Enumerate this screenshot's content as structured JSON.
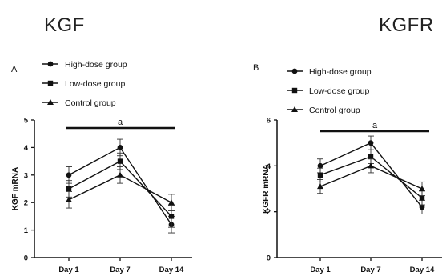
{
  "page_titles": [
    "KGF",
    "KGFR"
  ],
  "chart_data": [
    {
      "type": "line",
      "panel_label": "A",
      "title": "KGF",
      "xlabel": "",
      "ylabel": "KGF mRNA",
      "categories": [
        "Day 1",
        "Day 7",
        "Day 14"
      ],
      "ylim": [
        0,
        5
      ],
      "yticks": [
        "0",
        "1",
        "2",
        "3",
        "4",
        "5"
      ],
      "significance_label": "a",
      "legend_position": "top-left",
      "series": [
        {
          "name": "High-dose group",
          "marker": "circle",
          "values": [
            3.0,
            4.0,
            1.2
          ],
          "errors": [
            0.3,
            0.3,
            0.3
          ]
        },
        {
          "name": "Low-dose group",
          "marker": "square",
          "values": [
            2.5,
            3.5,
            1.5
          ],
          "errors": [
            0.3,
            0.3,
            0.4
          ]
        },
        {
          "name": "Control group",
          "marker": "triangle",
          "values": [
            2.1,
            3.0,
            2.0
          ],
          "errors": [
            0.3,
            0.3,
            0.3
          ]
        }
      ]
    },
    {
      "type": "line",
      "panel_label": "B",
      "title": "KGFR",
      "xlabel": "",
      "ylabel": "KGFR mRNA",
      "categories": [
        "Day 1",
        "Day 7",
        "Day 14"
      ],
      "ylim": [
        0,
        6
      ],
      "yticks": [
        "0",
        "2",
        "4",
        "6"
      ],
      "significance_label": "a",
      "legend_position": "top-left",
      "series": [
        {
          "name": "High-dose group",
          "marker": "circle",
          "values": [
            4.0,
            5.0,
            2.2
          ],
          "errors": [
            0.3,
            0.3,
            0.3
          ]
        },
        {
          "name": "Low-dose group",
          "marker": "square",
          "values": [
            3.6,
            4.4,
            2.6
          ],
          "errors": [
            0.3,
            0.3,
            0.3
          ]
        },
        {
          "name": "Control group",
          "marker": "triangle",
          "values": [
            3.1,
            4.0,
            3.0
          ],
          "errors": [
            0.3,
            0.3,
            0.3
          ]
        }
      ]
    }
  ]
}
